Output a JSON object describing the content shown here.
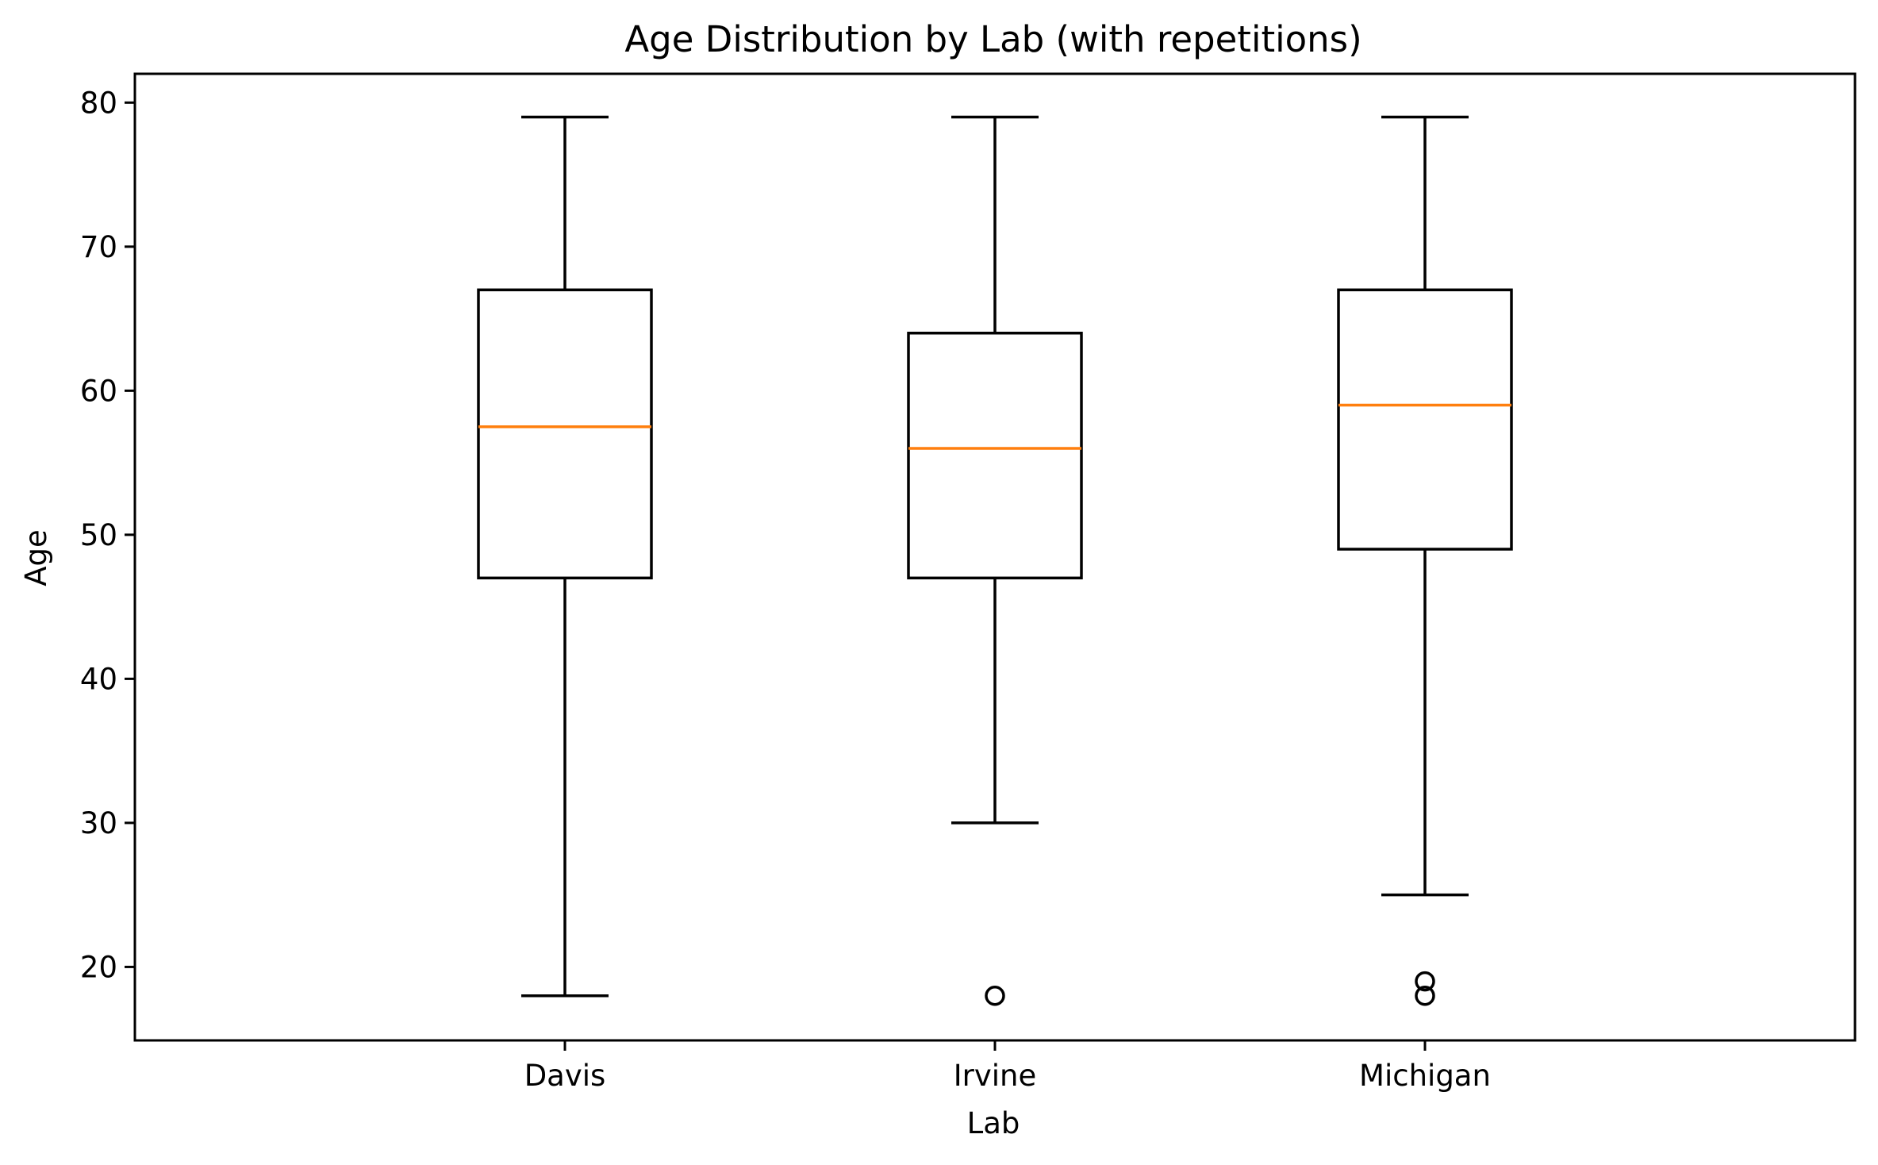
{
  "chart_data": {
    "type": "boxplot",
    "title": "Age Distribution by Lab (with repetitions)",
    "xlabel": "Lab",
    "ylabel": "Age",
    "ylim": [
      14.9,
      82
    ],
    "yticks": [
      20,
      30,
      40,
      50,
      60,
      70,
      80
    ],
    "categories": [
      "Davis",
      "Irvine",
      "Michigan"
    ],
    "boxes": [
      {
        "category": "Davis",
        "whisker_low": 18,
        "q1": 47,
        "median": 57.5,
        "q3": 67,
        "whisker_high": 79,
        "outliers": []
      },
      {
        "category": "Irvine",
        "whisker_low": 30,
        "q1": 47,
        "median": 56,
        "q3": 64,
        "whisker_high": 79,
        "outliers": [
          18
        ]
      },
      {
        "category": "Michigan",
        "whisker_low": 25,
        "q1": 49,
        "median": 59,
        "q3": 67,
        "whisker_high": 79,
        "outliers": [
          18,
          19
        ]
      }
    ],
    "grid": false,
    "legend": "none",
    "colors": {
      "box": "#000000",
      "median": "#ff7f0e",
      "outlier": "#000000"
    }
  }
}
